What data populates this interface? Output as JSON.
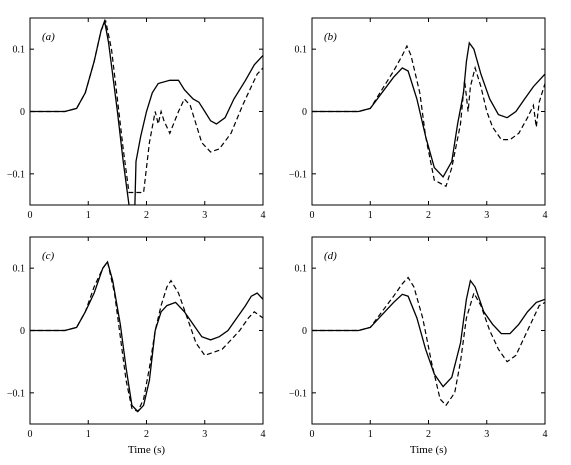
{
  "chart_data": [
    {
      "type": "line",
      "panel_label": "(a)",
      "xlabel": "",
      "ylabel": "",
      "xlim": [
        0,
        4
      ],
      "ylim": [
        -0.15,
        0.15
      ],
      "xticks": [
        0,
        1,
        2,
        3,
        4
      ],
      "yticks": [
        -0.1,
        0,
        0.1
      ],
      "x_tick_labels": [
        "0",
        "1",
        "2",
        "3",
        "4"
      ],
      "y_tick_labels": [
        "−0.1",
        "0",
        "0.1"
      ],
      "series": [
        {
          "style": "solid",
          "points": [
            [
              0,
              0
            ],
            [
              0.6,
              0
            ],
            [
              0.8,
              0.005
            ],
            [
              0.95,
              0.03
            ],
            [
              1.1,
              0.08
            ],
            [
              1.22,
              0.13
            ],
            [
              1.28,
              0.145
            ],
            [
              1.35,
              0.11
            ],
            [
              1.5,
              0
            ],
            [
              1.6,
              -0.08
            ],
            [
              1.7,
              -0.15
            ],
            [
              1.8,
              -0.15
            ],
            [
              1.82,
              -0.08
            ],
            [
              1.9,
              -0.04
            ],
            [
              2,
              0
            ],
            [
              2.1,
              0.03
            ],
            [
              2.2,
              0.045
            ],
            [
              2.4,
              0.05
            ],
            [
              2.55,
              0.05
            ],
            [
              2.65,
              0.035
            ],
            [
              2.8,
              0.02
            ],
            [
              2.9,
              0.015
            ],
            [
              3.0,
              0
            ],
            [
              3.1,
              -0.015
            ],
            [
              3.2,
              -0.02
            ],
            [
              3.35,
              -0.01
            ],
            [
              3.5,
              0.02
            ],
            [
              3.7,
              0.05
            ],
            [
              3.85,
              0.075
            ],
            [
              4,
              0.09
            ]
          ]
        },
        {
          "style": "dashed",
          "points": [
            [
              0,
              0
            ],
            [
              0.6,
              0
            ],
            [
              0.8,
              0.005
            ],
            [
              0.95,
              0.03
            ],
            [
              1.1,
              0.08
            ],
            [
              1.22,
              0.13
            ],
            [
              1.3,
              0.145
            ],
            [
              1.4,
              0.1
            ],
            [
              1.5,
              0.02
            ],
            [
              1.6,
              -0.06
            ],
            [
              1.7,
              -0.13
            ],
            [
              1.95,
              -0.13
            ],
            [
              2.05,
              -0.05
            ],
            [
              2.15,
              0
            ],
            [
              2.2,
              -0.02
            ],
            [
              2.25,
              0
            ],
            [
              2.3,
              -0.015
            ],
            [
              2.4,
              -0.035
            ],
            [
              2.55,
              0
            ],
            [
              2.65,
              0.02
            ],
            [
              2.75,
              0.01
            ],
            [
              2.85,
              -0.02
            ],
            [
              2.95,
              -0.05
            ],
            [
              3.1,
              -0.065
            ],
            [
              3.25,
              -0.06
            ],
            [
              3.45,
              -0.035
            ],
            [
              3.65,
              0.01
            ],
            [
              3.8,
              0.04
            ],
            [
              3.9,
              0.06
            ],
            [
              4,
              0.07
            ]
          ]
        }
      ]
    },
    {
      "type": "line",
      "panel_label": "(b)",
      "xlabel": "",
      "ylabel": "",
      "xlim": [
        0,
        4
      ],
      "ylim": [
        -0.15,
        0.15
      ],
      "xticks": [
        0,
        1,
        2,
        3,
        4
      ],
      "yticks": [
        -0.1,
        0,
        0.1
      ],
      "x_tick_labels": [
        "0",
        "1",
        "2",
        "3",
        "4"
      ],
      "y_tick_labels": [
        "−0.1",
        "0",
        "0.1"
      ],
      "series": [
        {
          "style": "solid",
          "points": [
            [
              0,
              0
            ],
            [
              0.8,
              0
            ],
            [
              1,
              0.005
            ],
            [
              1.2,
              0.03
            ],
            [
              1.4,
              0.055
            ],
            [
              1.55,
              0.07
            ],
            [
              1.65,
              0.065
            ],
            [
              1.8,
              0.02
            ],
            [
              1.95,
              -0.04
            ],
            [
              2.1,
              -0.09
            ],
            [
              2.25,
              -0.105
            ],
            [
              2.4,
              -0.08
            ],
            [
              2.5,
              -0.02
            ],
            [
              2.6,
              0.03
            ],
            [
              2.65,
              0.08
            ],
            [
              2.7,
              0.11
            ],
            [
              2.78,
              0.1
            ],
            [
              2.9,
              0.06
            ],
            [
              3.05,
              0.02
            ],
            [
              3.2,
              -0.005
            ],
            [
              3.35,
              -0.01
            ],
            [
              3.5,
              0
            ],
            [
              3.65,
              0.02
            ],
            [
              3.8,
              0.04
            ],
            [
              3.95,
              0.055
            ],
            [
              4,
              0.06
            ]
          ]
        },
        {
          "style": "dashed",
          "points": [
            [
              0,
              0
            ],
            [
              0.8,
              0
            ],
            [
              1,
              0.005
            ],
            [
              1.2,
              0.035
            ],
            [
              1.4,
              0.065
            ],
            [
              1.55,
              0.09
            ],
            [
              1.63,
              0.105
            ],
            [
              1.7,
              0.09
            ],
            [
              1.85,
              0.03
            ],
            [
              1.95,
              -0.04
            ],
            [
              2.1,
              -0.11
            ],
            [
              2.3,
              -0.12
            ],
            [
              2.4,
              -0.09
            ],
            [
              2.55,
              -0.02
            ],
            [
              2.62,
              0.05
            ],
            [
              2.68,
              0
            ],
            [
              2.72,
              0.04
            ],
            [
              2.8,
              0.07
            ],
            [
              2.9,
              0.04
            ],
            [
              3.0,
              0
            ],
            [
              3.1,
              -0.025
            ],
            [
              3.25,
              -0.045
            ],
            [
              3.4,
              -0.045
            ],
            [
              3.55,
              -0.035
            ],
            [
              3.7,
              -0.01
            ],
            [
              3.8,
              0.01
            ],
            [
              3.85,
              -0.025
            ],
            [
              3.9,
              0.015
            ],
            [
              3.95,
              0.03
            ],
            [
              4,
              0.045
            ]
          ]
        }
      ]
    },
    {
      "type": "line",
      "panel_label": "(c)",
      "xlabel": "Time (s)",
      "ylabel": "",
      "xlim": [
        0,
        4
      ],
      "ylim": [
        -0.15,
        0.15
      ],
      "xticks": [
        0,
        1,
        2,
        3,
        4
      ],
      "yticks": [
        -0.1,
        0,
        0.1
      ],
      "x_tick_labels": [
        "0",
        "1",
        "2",
        "3",
        "4"
      ],
      "y_tick_labels": [
        "−0.1",
        "0",
        "0.1"
      ],
      "series": [
        {
          "style": "solid",
          "points": [
            [
              0,
              0
            ],
            [
              0.6,
              0
            ],
            [
              0.8,
              0.005
            ],
            [
              0.95,
              0.03
            ],
            [
              1.1,
              0.06
            ],
            [
              1.25,
              0.1
            ],
            [
              1.33,
              0.11
            ],
            [
              1.42,
              0.08
            ],
            [
              1.55,
              0.01
            ],
            [
              1.65,
              -0.06
            ],
            [
              1.75,
              -0.12
            ],
            [
              1.85,
              -0.13
            ],
            [
              1.95,
              -0.12
            ],
            [
              2.05,
              -0.08
            ],
            [
              2.15,
              0
            ],
            [
              2.25,
              0.03
            ],
            [
              2.35,
              0.04
            ],
            [
              2.5,
              0.045
            ],
            [
              2.65,
              0.03
            ],
            [
              2.8,
              0.01
            ],
            [
              2.95,
              -0.01
            ],
            [
              3.1,
              -0.015
            ],
            [
              3.25,
              -0.01
            ],
            [
              3.4,
              0
            ],
            [
              3.55,
              0.02
            ],
            [
              3.7,
              0.04
            ],
            [
              3.8,
              0.055
            ],
            [
              3.9,
              0.06
            ],
            [
              4,
              0.05
            ]
          ]
        },
        {
          "style": "dashed",
          "points": [
            [
              0,
              0
            ],
            [
              0.6,
              0
            ],
            [
              0.8,
              0.005
            ],
            [
              0.95,
              0.03
            ],
            [
              1.1,
              0.07
            ],
            [
              1.25,
              0.1
            ],
            [
              1.33,
              0.11
            ],
            [
              1.45,
              0.06
            ],
            [
              1.55,
              -0.01
            ],
            [
              1.65,
              -0.08
            ],
            [
              1.75,
              -0.125
            ],
            [
              1.85,
              -0.13
            ],
            [
              1.95,
              -0.11
            ],
            [
              2.05,
              -0.06
            ],
            [
              2.15,
              0
            ],
            [
              2.25,
              0.04
            ],
            [
              2.35,
              0.07
            ],
            [
              2.42,
              0.08
            ],
            [
              2.55,
              0.06
            ],
            [
              2.7,
              0.02
            ],
            [
              2.85,
              -0.02
            ],
            [
              3.0,
              -0.04
            ],
            [
              3.15,
              -0.035
            ],
            [
              3.3,
              -0.03
            ],
            [
              3.45,
              -0.015
            ],
            [
              3.6,
              0
            ],
            [
              3.75,
              0.02
            ],
            [
              3.85,
              0.03
            ],
            [
              4,
              0.02
            ]
          ]
        }
      ]
    },
    {
      "type": "line",
      "panel_label": "(d)",
      "xlabel": "Time (s)",
      "ylabel": "",
      "xlim": [
        0,
        4
      ],
      "ylim": [
        -0.15,
        0.15
      ],
      "xticks": [
        0,
        1,
        2,
        3,
        4
      ],
      "yticks": [
        -0.1,
        0,
        0.1
      ],
      "x_tick_labels": [
        "0",
        "1",
        "2",
        "3",
        "4"
      ],
      "y_tick_labels": [
        "−0.1",
        "0",
        "0.1"
      ],
      "series": [
        {
          "style": "solid",
          "points": [
            [
              0,
              0
            ],
            [
              0.8,
              0
            ],
            [
              1,
              0.005
            ],
            [
              1.2,
              0.025
            ],
            [
              1.4,
              0.045
            ],
            [
              1.55,
              0.058
            ],
            [
              1.65,
              0.055
            ],
            [
              1.8,
              0.02
            ],
            [
              1.95,
              -0.03
            ],
            [
              2.1,
              -0.07
            ],
            [
              2.25,
              -0.09
            ],
            [
              2.4,
              -0.075
            ],
            [
              2.55,
              -0.02
            ],
            [
              2.65,
              0.05
            ],
            [
              2.72,
              0.08
            ],
            [
              2.8,
              0.07
            ],
            [
              2.95,
              0.03
            ],
            [
              3.1,
              0.01
            ],
            [
              3.25,
              -0.005
            ],
            [
              3.4,
              -0.005
            ],
            [
              3.55,
              0.01
            ],
            [
              3.7,
              0.03
            ],
            [
              3.85,
              0.045
            ],
            [
              4,
              0.05
            ]
          ]
        },
        {
          "style": "dashed",
          "points": [
            [
              0,
              0
            ],
            [
              0.8,
              0
            ],
            [
              1,
              0.005
            ],
            [
              1.2,
              0.03
            ],
            [
              1.4,
              0.055
            ],
            [
              1.55,
              0.075
            ],
            [
              1.65,
              0.085
            ],
            [
              1.75,
              0.07
            ],
            [
              1.9,
              0.02
            ],
            [
              2.05,
              -0.05
            ],
            [
              2.2,
              -0.11
            ],
            [
              2.3,
              -0.12
            ],
            [
              2.45,
              -0.1
            ],
            [
              2.55,
              -0.05
            ],
            [
              2.65,
              0.02
            ],
            [
              2.78,
              0.06
            ],
            [
              2.9,
              0.04
            ],
            [
              3.05,
              0
            ],
            [
              3.2,
              -0.03
            ],
            [
              3.35,
              -0.05
            ],
            [
              3.5,
              -0.04
            ],
            [
              3.65,
              -0.01
            ],
            [
              3.8,
              0.02
            ],
            [
              3.9,
              0.04
            ],
            [
              4,
              0.045
            ]
          ]
        }
      ]
    }
  ]
}
